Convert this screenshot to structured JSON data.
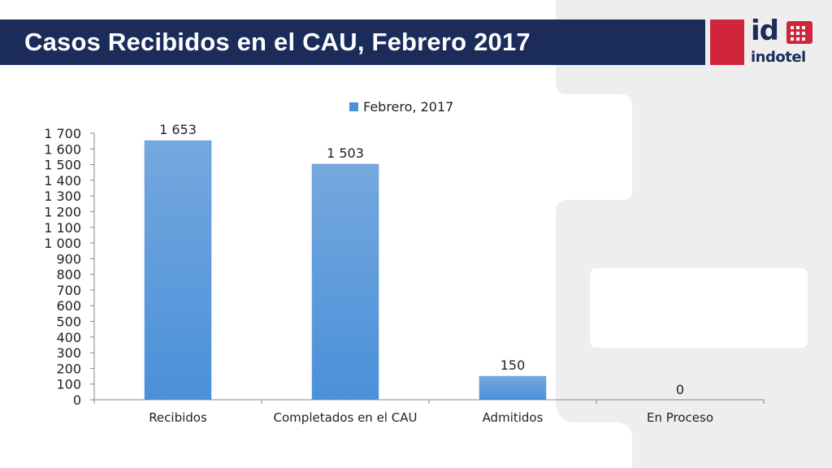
{
  "slide": {
    "title": "Casos Recibidos en el CAU, Febrero 2017"
  },
  "logo": {
    "mark": "id",
    "wordmark": "indotel",
    "brand_red": "#d0263c",
    "brand_navy": "#1b2c5b"
  },
  "colors": {
    "title_bar": "#1b2c5b",
    "bar_fill": "#4a90d9",
    "background_panel": "#eeeeee"
  },
  "chart_data": {
    "type": "bar",
    "categories": [
      "Recibidos",
      "Completados en el CAU",
      "Admitidos",
      "En Proceso"
    ],
    "series": [
      {
        "name": "Febrero, 2017",
        "values": [
          1653,
          1503,
          150,
          0
        ]
      }
    ],
    "data_labels": [
      "1 653",
      "1 503",
      "150",
      "0"
    ],
    "ylim": [
      0,
      1700
    ],
    "yticks": [
      0,
      100,
      200,
      300,
      400,
      500,
      600,
      700,
      800,
      900,
      1000,
      1100,
      1200,
      1300,
      1400,
      1500,
      1600,
      1700
    ],
    "ytick_labels": [
      "0",
      "100",
      "200",
      "300",
      "400",
      "500",
      "600",
      "700",
      "800",
      "900",
      "1 000",
      "1 100",
      "1 200",
      "1 300",
      "1 400",
      "1 500",
      "1 600",
      "1 700"
    ],
    "grid": false,
    "legend": "top-center"
  }
}
